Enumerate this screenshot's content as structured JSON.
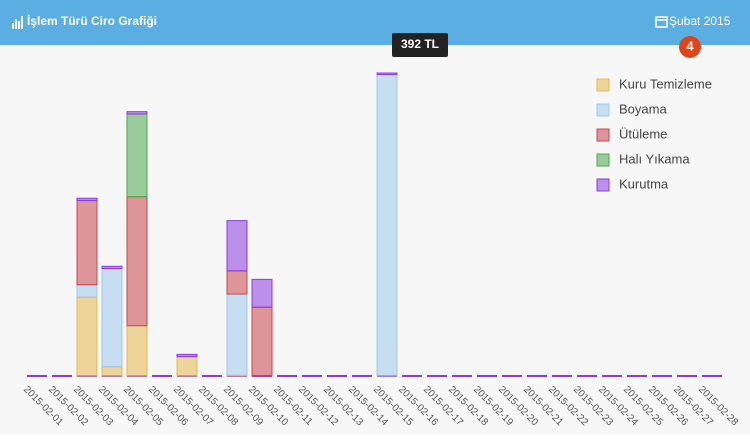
{
  "header": {
    "title": "İşlem Türü Ciro Grafiği",
    "period": "Şubat 2015",
    "badge": "4"
  },
  "chart_data": {
    "type": "stacked_bar",
    "tooltip": "392 TL",
    "categories": [
      "2015-02-01",
      "2015-02-02",
      "2015-02-03",
      "2015-02-04",
      "2015-02-05",
      "2015-02-06",
      "2015-02-07",
      "2015-02-08",
      "2015-02-09",
      "2015-02-10",
      "2015-02-11",
      "2015-02-12",
      "2015-02-13",
      "2015-02-14",
      "2015-02-15",
      "2015-02-16",
      "2015-02-17",
      "2015-02-18",
      "2015-02-19",
      "2015-02-20",
      "2015-02-21",
      "2015-02-22",
      "2015-02-23",
      "2015-02-24",
      "2015-02-25",
      "2015-02-26",
      "2015-02-27",
      "2015-02-28"
    ],
    "ylim": [
      0,
      392
    ],
    "series": [
      {
        "name": "Kuru Temizleme",
        "color": "#e8b84a",
        "values": [
          0,
          0,
          102,
          12,
          65,
          0,
          25,
          0,
          1,
          0,
          0,
          0,
          0,
          0,
          0,
          0,
          0,
          0,
          0,
          0,
          0,
          0,
          0,
          0,
          0,
          0,
          0,
          0
        ]
      },
      {
        "name": "Boyama",
        "color": "#9ec9ef",
        "values": [
          0,
          0,
          16,
          127,
          0,
          0,
          0,
          0,
          105,
          0,
          0,
          0,
          0,
          0,
          390,
          0,
          0,
          0,
          0,
          0,
          0,
          0,
          0,
          0,
          0,
          0,
          0,
          0
        ]
      },
      {
        "name": "Ütüleme",
        "color": "#c9464f",
        "values": [
          0,
          0,
          109,
          0,
          167,
          0,
          0,
          0,
          30,
          89,
          0,
          0,
          0,
          0,
          0,
          0,
          0,
          0,
          0,
          0,
          0,
          0,
          0,
          0,
          0,
          0,
          0,
          0
        ]
      },
      {
        "name": "Halı Yıkama",
        "color": "#4ea84e",
        "values": [
          0,
          0,
          0,
          0,
          107,
          0,
          0,
          0,
          0,
          0,
          0,
          0,
          0,
          0,
          0,
          0,
          0,
          0,
          0,
          0,
          0,
          0,
          0,
          0,
          0,
          0,
          0,
          0
        ]
      },
      {
        "name": "Kurutma",
        "color": "#8a3be0",
        "values": [
          0,
          0,
          3,
          3,
          3,
          0,
          3,
          0,
          65,
          36,
          0,
          0,
          0,
          0,
          2,
          0,
          0,
          0,
          0,
          0,
          0,
          0,
          0,
          0,
          0,
          0,
          0,
          0
        ]
      }
    ]
  }
}
